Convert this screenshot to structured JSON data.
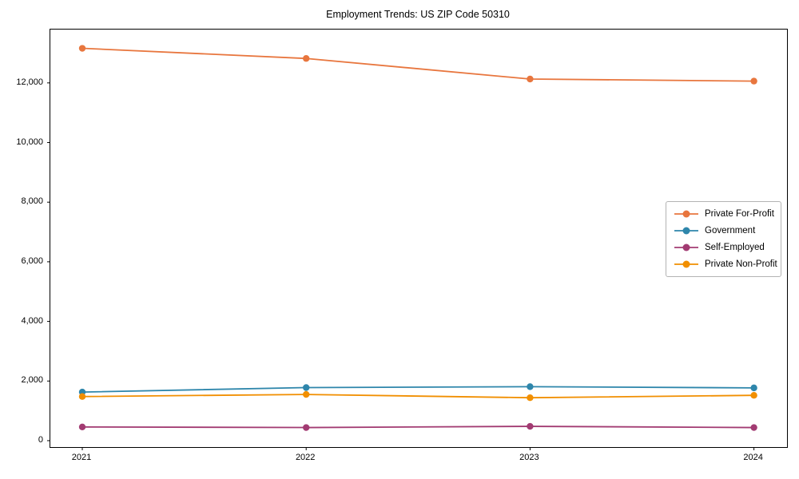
{
  "chart_data": {
    "type": "line",
    "title": "Employment Trends: US ZIP Code 50310",
    "x": [
      "2021",
      "2022",
      "2023",
      "2024"
    ],
    "series": [
      {
        "name": "Private For-Profit",
        "color": "#e8763e",
        "values": [
          13160,
          12820,
          12130,
          12060
        ]
      },
      {
        "name": "Government",
        "color": "#2e86ab",
        "values": [
          1630,
          1780,
          1810,
          1770
        ]
      },
      {
        "name": "Self-Employed",
        "color": "#a23b72",
        "values": [
          460,
          440,
          480,
          440
        ]
      },
      {
        "name": "Private Non-Profit",
        "color": "#f18f01",
        "values": [
          1480,
          1550,
          1440,
          1520
        ]
      }
    ],
    "yticks": {
      "values": [
        0,
        2000,
        4000,
        6000,
        8000,
        10000,
        12000
      ],
      "labels": [
        "0",
        "2,000",
        "4,000",
        "6,000",
        "8,000",
        "10,000",
        "12,000"
      ]
    },
    "ylim": [
      -215,
      13790
    ],
    "xlabel": "",
    "ylabel": "",
    "grid": false,
    "legend_position": "center-right",
    "marker": "circle",
    "axis_color": "#000000",
    "background_color": "#ffffff"
  }
}
